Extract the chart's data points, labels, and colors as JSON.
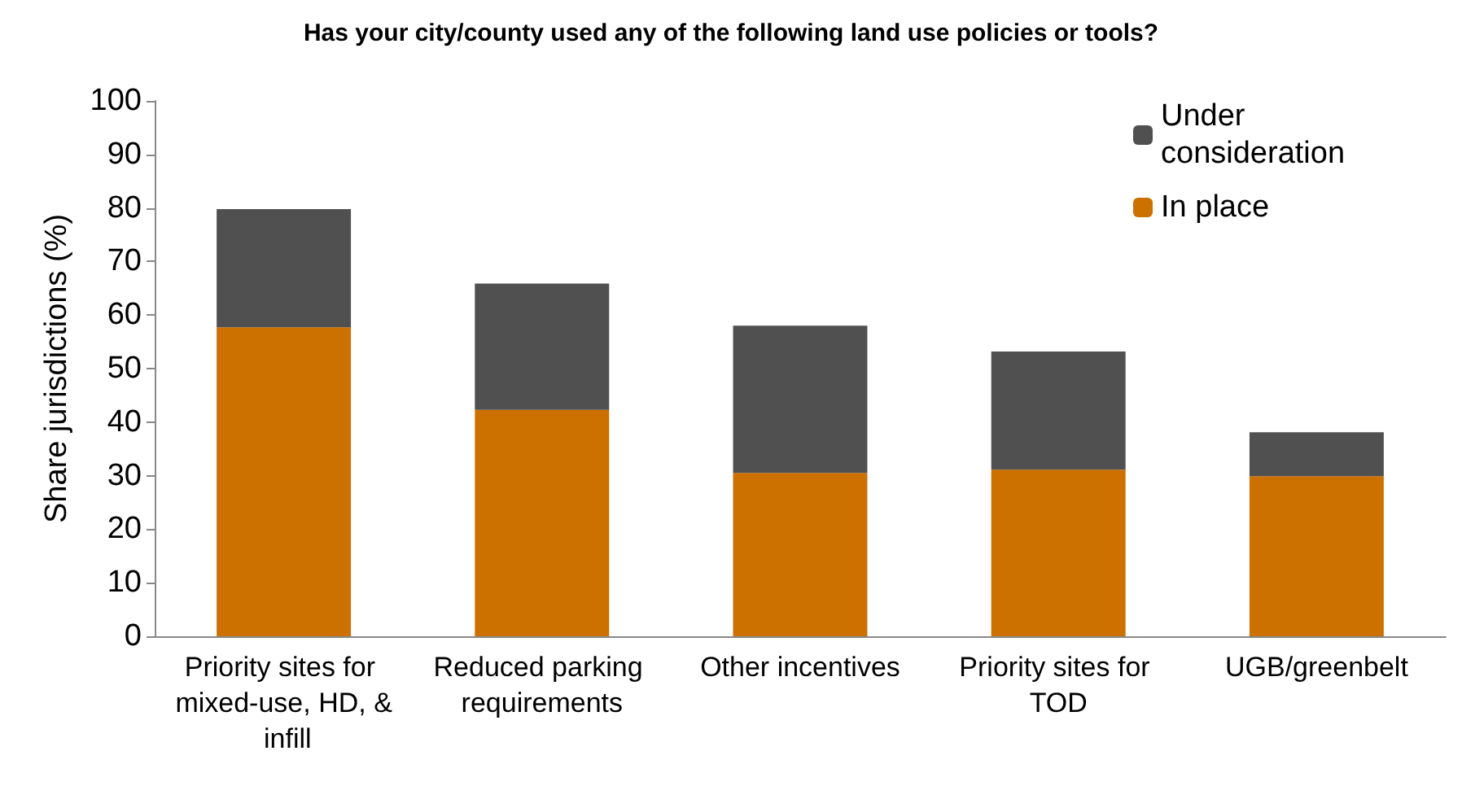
{
  "chart_data": {
    "type": "bar",
    "title": "Has your city/county used any of the following land use policies or tools?",
    "ylabel": "Share jurisdictions (%)",
    "categories": [
      "Priority sites for mixed-use, HD, & infill",
      "Reduced parking requirements",
      "Other incentives",
      "Priority sites for TOD",
      "UGB/greenbelt"
    ],
    "series": [
      {
        "name": "In place",
        "color": "#cc7000",
        "values": [
          57.7,
          42.3,
          30.5,
          31.1,
          29.9
        ]
      },
      {
        "name": "Under consideration",
        "color": "#505050",
        "values": [
          22.1,
          23.6,
          27.5,
          22.1,
          8.2
        ]
      }
    ],
    "stacked": true,
    "ylim": [
      0,
      100
    ],
    "yticks": [
      0,
      10,
      20,
      30,
      40,
      50,
      60,
      70,
      80,
      90,
      100
    ],
    "grid": false,
    "legend": "top right"
  }
}
